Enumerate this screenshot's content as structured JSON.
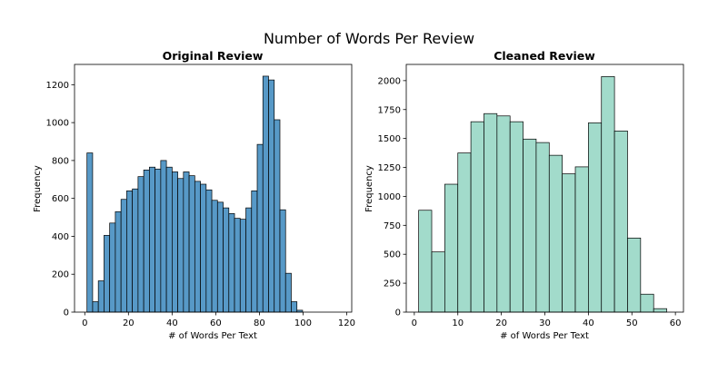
{
  "figure": {
    "suptitle": "Number of Words Per Review"
  },
  "chart_data": [
    {
      "type": "bar",
      "subtype": "histogram",
      "title": "Original Review",
      "xlabel": "# of Words Per Text",
      "ylabel": "Frequency",
      "xlim": [
        -4.7,
        122.3
      ],
      "ylim": [
        0,
        1307
      ],
      "xticks": [
        0,
        20,
        40,
        60,
        80,
        100,
        120
      ],
      "yticks": [
        0,
        200,
        400,
        600,
        800,
        1000,
        1200
      ],
      "bar_color": "#5799c7",
      "edge_color": "#000000",
      "bins": [
        {
          "x0": 1.0,
          "x1": 3.6,
          "value": 840
        },
        {
          "x0": 3.6,
          "x1": 6.2,
          "value": 55
        },
        {
          "x0": 6.2,
          "x1": 8.8,
          "value": 165
        },
        {
          "x0": 8.8,
          "x1": 11.4,
          "value": 405
        },
        {
          "x0": 11.4,
          "x1": 14.0,
          "value": 470
        },
        {
          "x0": 14.0,
          "x1": 16.6,
          "value": 530
        },
        {
          "x0": 16.6,
          "x1": 19.2,
          "value": 595
        },
        {
          "x0": 19.2,
          "x1": 21.8,
          "value": 640
        },
        {
          "x0": 21.8,
          "x1": 24.4,
          "value": 650
        },
        {
          "x0": 24.4,
          "x1": 27.0,
          "value": 715
        },
        {
          "x0": 27.0,
          "x1": 29.6,
          "value": 750
        },
        {
          "x0": 29.6,
          "x1": 32.2,
          "value": 765
        },
        {
          "x0": 32.2,
          "x1": 34.8,
          "value": 755
        },
        {
          "x0": 34.8,
          "x1": 37.4,
          "value": 800
        },
        {
          "x0": 37.4,
          "x1": 40.0,
          "value": 765
        },
        {
          "x0": 40.0,
          "x1": 42.6,
          "value": 740
        },
        {
          "x0": 42.6,
          "x1": 45.2,
          "value": 705
        },
        {
          "x0": 45.2,
          "x1": 47.8,
          "value": 740
        },
        {
          "x0": 47.8,
          "x1": 50.4,
          "value": 720
        },
        {
          "x0": 50.4,
          "x1": 53.0,
          "value": 690
        },
        {
          "x0": 53.0,
          "x1": 55.6,
          "value": 675
        },
        {
          "x0": 55.6,
          "x1": 58.2,
          "value": 645
        },
        {
          "x0": 58.2,
          "x1": 60.8,
          "value": 590
        },
        {
          "x0": 60.8,
          "x1": 63.4,
          "value": 580
        },
        {
          "x0": 63.4,
          "x1": 66.0,
          "value": 550
        },
        {
          "x0": 66.0,
          "x1": 68.6,
          "value": 520
        },
        {
          "x0": 68.6,
          "x1": 71.2,
          "value": 495
        },
        {
          "x0": 71.2,
          "x1": 73.8,
          "value": 490
        },
        {
          "x0": 73.8,
          "x1": 76.4,
          "value": 550
        },
        {
          "x0": 76.4,
          "x1": 79.0,
          "value": 640
        },
        {
          "x0": 79.0,
          "x1": 81.6,
          "value": 885
        },
        {
          "x0": 81.6,
          "x1": 84.2,
          "value": 1245
        },
        {
          "x0": 84.2,
          "x1": 86.8,
          "value": 1225
        },
        {
          "x0": 86.8,
          "x1": 89.4,
          "value": 1015
        },
        {
          "x0": 89.4,
          "x1": 92.0,
          "value": 540
        },
        {
          "x0": 92.0,
          "x1": 94.6,
          "value": 205
        },
        {
          "x0": 94.6,
          "x1": 97.2,
          "value": 55
        },
        {
          "x0": 97.2,
          "x1": 99.8,
          "value": 10
        }
      ]
    },
    {
      "type": "bar",
      "subtype": "histogram",
      "title": "Cleaned Review",
      "xlabel": "# of Words Per Text",
      "ylabel": "Frequency",
      "xlim": [
        -1.85,
        61.85
      ],
      "ylim": [
        0,
        2140
      ],
      "xticks": [
        0,
        10,
        20,
        30,
        40,
        50,
        60
      ],
      "yticks": [
        0,
        250,
        500,
        750,
        1000,
        1250,
        1500,
        1750,
        2000
      ],
      "bar_color": "#a2dbcb",
      "edge_color": "#000000",
      "bins": [
        {
          "x0": 1.0,
          "x1": 4.0,
          "value": 880
        },
        {
          "x0": 4.0,
          "x1": 7.0,
          "value": 520
        },
        {
          "x0": 7.0,
          "x1": 10.0,
          "value": 1105
        },
        {
          "x0": 10.0,
          "x1": 13.0,
          "value": 1375
        },
        {
          "x0": 13.0,
          "x1": 16.0,
          "value": 1645
        },
        {
          "x0": 16.0,
          "x1": 19.0,
          "value": 1715
        },
        {
          "x0": 19.0,
          "x1": 22.0,
          "value": 1695
        },
        {
          "x0": 22.0,
          "x1": 25.0,
          "value": 1645
        },
        {
          "x0": 25.0,
          "x1": 28.0,
          "value": 1495
        },
        {
          "x0": 28.0,
          "x1": 31.0,
          "value": 1465
        },
        {
          "x0": 31.0,
          "x1": 34.0,
          "value": 1355
        },
        {
          "x0": 34.0,
          "x1": 37.0,
          "value": 1195
        },
        {
          "x0": 37.0,
          "x1": 40.0,
          "value": 1255
        },
        {
          "x0": 40.0,
          "x1": 43.0,
          "value": 1635
        },
        {
          "x0": 43.0,
          "x1": 46.0,
          "value": 2035
        },
        {
          "x0": 46.0,
          "x1": 49.0,
          "value": 1565
        },
        {
          "x0": 49.0,
          "x1": 52.0,
          "value": 640
        },
        {
          "x0": 52.0,
          "x1": 55.0,
          "value": 155
        },
        {
          "x0": 55.0,
          "x1": 58.0,
          "value": 30
        }
      ]
    }
  ]
}
